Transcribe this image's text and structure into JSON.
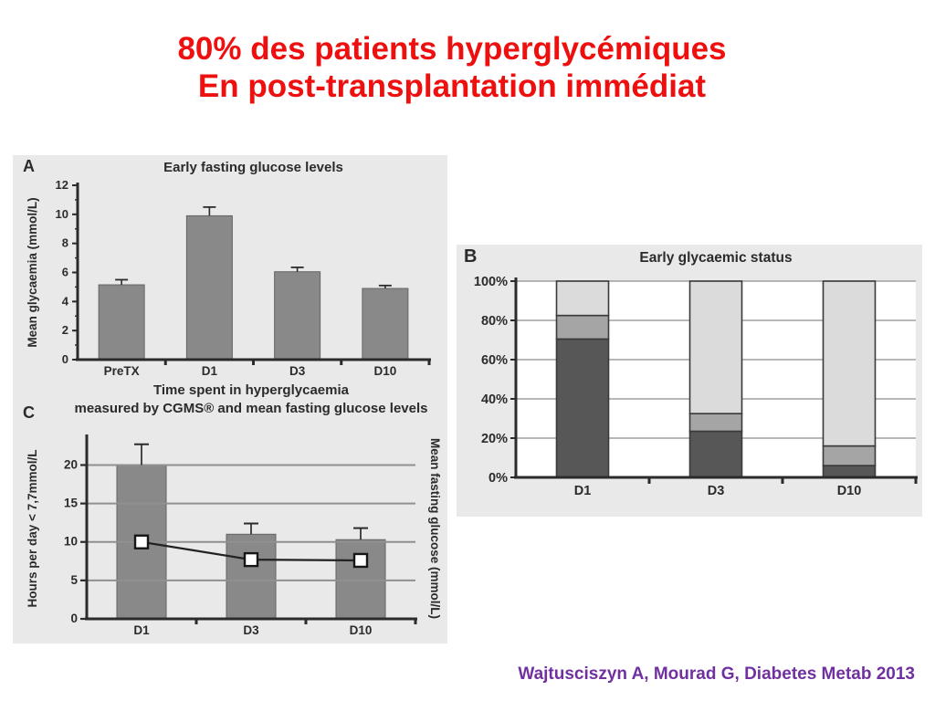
{
  "slide": {
    "title_line1": "80% des patients hyperglycémiques",
    "title_line2": "En post-transplantation immédiat",
    "citation": "Wajtusciszyn A, Mourad G, Diabetes Metab 2013",
    "colors": {
      "title_red": "#ee0f0f",
      "citation_purple": "#7030a0",
      "figure_bg": "#e9e9e9",
      "plot_bg": "#ffffff",
      "bar_fill": "#898989",
      "bar_stroke": "#646464",
      "axis": "#2b2b2b",
      "grid_b": "#a0a0a0",
      "grid_c": "#909090",
      "seg_dark": "#575757",
      "seg_medium": "#a5a5a5",
      "seg_light": "#dbdbdb",
      "seg_stroke": "#3a3a3a",
      "text": "#2b2b2b",
      "marker_fill": "#ffffff"
    }
  },
  "chart_data": [
    {
      "id": "A",
      "panel_label": "A",
      "type": "bar",
      "title": "Early fasting glucose levels",
      "categories": [
        "PreTX",
        "D1",
        "D3",
        "D10"
      ],
      "values": [
        5.15,
        9.9,
        6.05,
        4.9
      ],
      "errors": [
        0.35,
        0.6,
        0.3,
        0.2
      ],
      "ylabel": "Mean glycaemia (mmol/L)",
      "ylim": [
        0,
        12
      ],
      "yticks": [
        0,
        2,
        4,
        6,
        8,
        10,
        12
      ],
      "grid": false
    },
    {
      "id": "B",
      "panel_label": "B",
      "type": "bar",
      "subtype": "stacked-percent",
      "title": "Early glycaemic status",
      "categories": [
        "D1",
        "D3",
        "D10"
      ],
      "series": [
        {
          "name": "dark-segment",
          "values": [
            70.5,
            23.5,
            6
          ]
        },
        {
          "name": "medium-segment",
          "values": [
            12.0,
            9.0,
            10.0
          ]
        },
        {
          "name": "light-segment",
          "values": [
            17.5,
            67.5,
            84.0
          ]
        }
      ],
      "ylim": [
        0,
        100
      ],
      "ytick_labels": [
        "0%",
        "20%",
        "40%",
        "60%",
        "80%",
        "100%"
      ],
      "grid": true,
      "legend": "none"
    },
    {
      "id": "C",
      "panel_label": "C",
      "type": "bar",
      "subtype": "bar-plus-line",
      "title_line1": "Time spent in hyperglycaemia",
      "title_line2": "measured by CGMS® and mean fasting glucose levels",
      "categories": [
        "D1",
        "D3",
        "D10"
      ],
      "bar_values": [
        20,
        11,
        10.3
      ],
      "bar_errors": [
        2.7,
        1.4,
        1.5
      ],
      "line_values": [
        10,
        7.7,
        7.6
      ],
      "ylabel_left": "Hours per day < 7,7mmol/L",
      "ylabel_right": "Mean fasting glucose (mmol/L)",
      "ylim": [
        0,
        23.5
      ],
      "yticks": [
        0,
        5,
        10,
        15,
        20
      ],
      "grid": true
    }
  ]
}
